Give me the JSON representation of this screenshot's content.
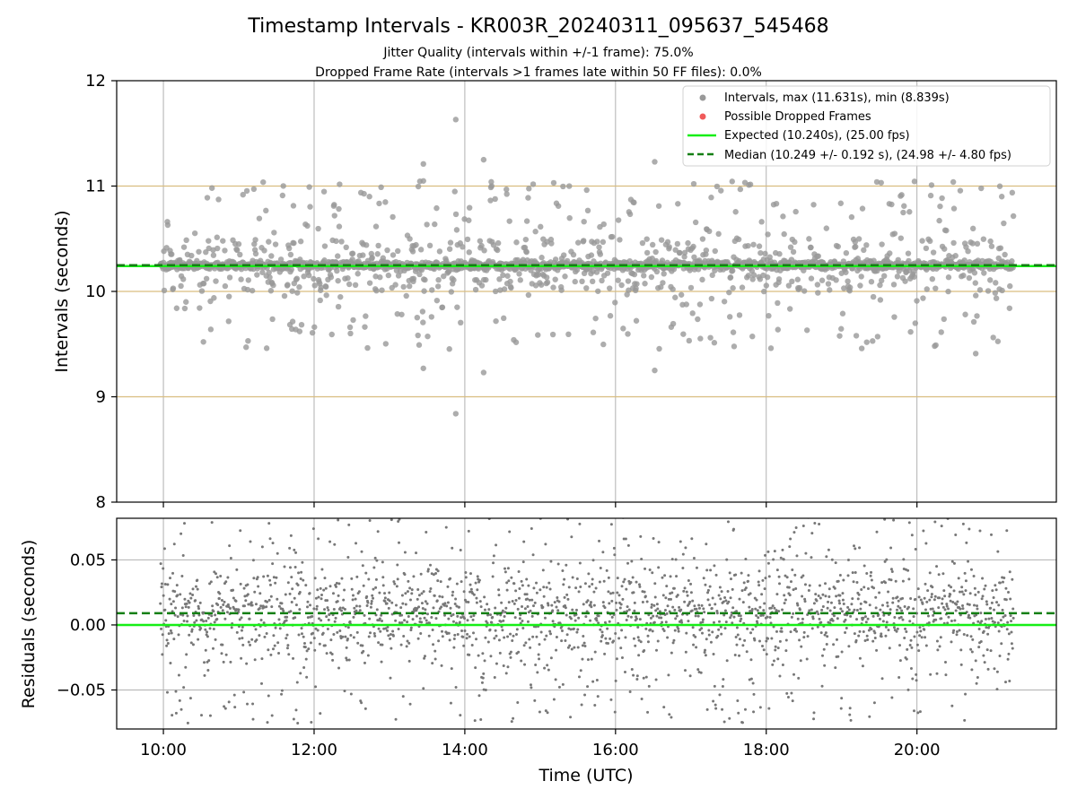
{
  "figure": {
    "title": "Timestamp Intervals - KR003R_20240311_095637_545468",
    "subtitle_1": "Jitter Quality (intervals within +/-1 frame): 75.0%",
    "subtitle_2": "Dropped Frame Rate (intervals >1 frames late within 50 FF files): 0.0%",
    "xlabel": "Time (UTC)"
  },
  "colors": {
    "points_top": "#999999",
    "points_bottom": "#777777",
    "dropped": "#f05a5a",
    "expected": "#16ee16",
    "median": "#137f13",
    "hline": "#d9bd7f",
    "grid": "#b0b0b0"
  },
  "chart_data": [
    {
      "type": "scatter",
      "title": "",
      "xlabel": "",
      "ylabel": "Intervals (seconds)",
      "xlim_hours": [
        9.38,
        21.85
      ],
      "ylim": [
        8,
        12
      ],
      "x_tick_values_hours": [
        10,
        12,
        14,
        16,
        18,
        20
      ],
      "y_ticks": [
        "8",
        "9",
        "10",
        "11",
        "12"
      ],
      "y_tick_values": [
        8,
        9,
        10,
        11,
        12
      ],
      "grid": "vertical",
      "horizontal_reference_lines": [
        9,
        10,
        11
      ],
      "legend_position": "upper-right",
      "series": [
        {
          "name": "Intervals, max (11.631s), min (8.839s)",
          "kind": "scatter",
          "color": "#999999",
          "max": 11.631,
          "min": 8.839,
          "center": 10.249,
          "n_points": 2200,
          "x_range_hours": [
            9.96,
            21.28
          ]
        },
        {
          "name": "Possible Dropped Frames",
          "kind": "scatter",
          "color": "#f05a5a",
          "values": []
        },
        {
          "name": "Expected (10.240s), (25.00 fps)",
          "kind": "hline",
          "color": "#16ee16",
          "y": 10.24
        },
        {
          "name": "Median (10.249 +/- 0.192 s), (24.98 +/- 4.80 fps)",
          "kind": "hline-dashed",
          "color": "#137f13",
          "y": 10.249
        }
      ],
      "highlighted_points": [
        {
          "x": 13.88,
          "y": 11.631
        },
        {
          "x": 13.88,
          "y": 8.839
        },
        {
          "x": 13.45,
          "y": 11.21
        },
        {
          "x": 14.25,
          "y": 11.25
        },
        {
          "x": 16.52,
          "y": 11.23
        },
        {
          "x": 16.52,
          "y": 9.25
        },
        {
          "x": 14.25,
          "y": 9.23
        },
        {
          "x": 13.45,
          "y": 9.27
        },
        {
          "x": 20.78,
          "y": 9.41
        }
      ]
    },
    {
      "type": "scatter",
      "title": "",
      "xlabel": "Time (UTC)",
      "ylabel": "Residuals (seconds)",
      "xlim_hours": [
        9.38,
        21.85
      ],
      "ylim": [
        -0.08,
        0.082
      ],
      "x_ticks": [
        "10:00",
        "12:00",
        "14:00",
        "16:00",
        "18:00",
        "20:00"
      ],
      "x_tick_values_hours": [
        10,
        12,
        14,
        16,
        18,
        20
      ],
      "y_ticks": [
        "−0.05",
        "0.00",
        "0.05"
      ],
      "y_tick_values": [
        -0.05,
        0.0,
        0.05
      ],
      "grid": "both",
      "series": [
        {
          "name": "",
          "kind": "scatter",
          "color": "#777777",
          "center": 0.009,
          "n_points": 2200,
          "x_range_hours": [
            9.96,
            21.28
          ]
        },
        {
          "name": "",
          "kind": "hline",
          "color": "#16ee16",
          "y": 0.0
        },
        {
          "name": "",
          "kind": "hline-dashed",
          "color": "#137f13",
          "y": 0.009
        }
      ]
    }
  ]
}
